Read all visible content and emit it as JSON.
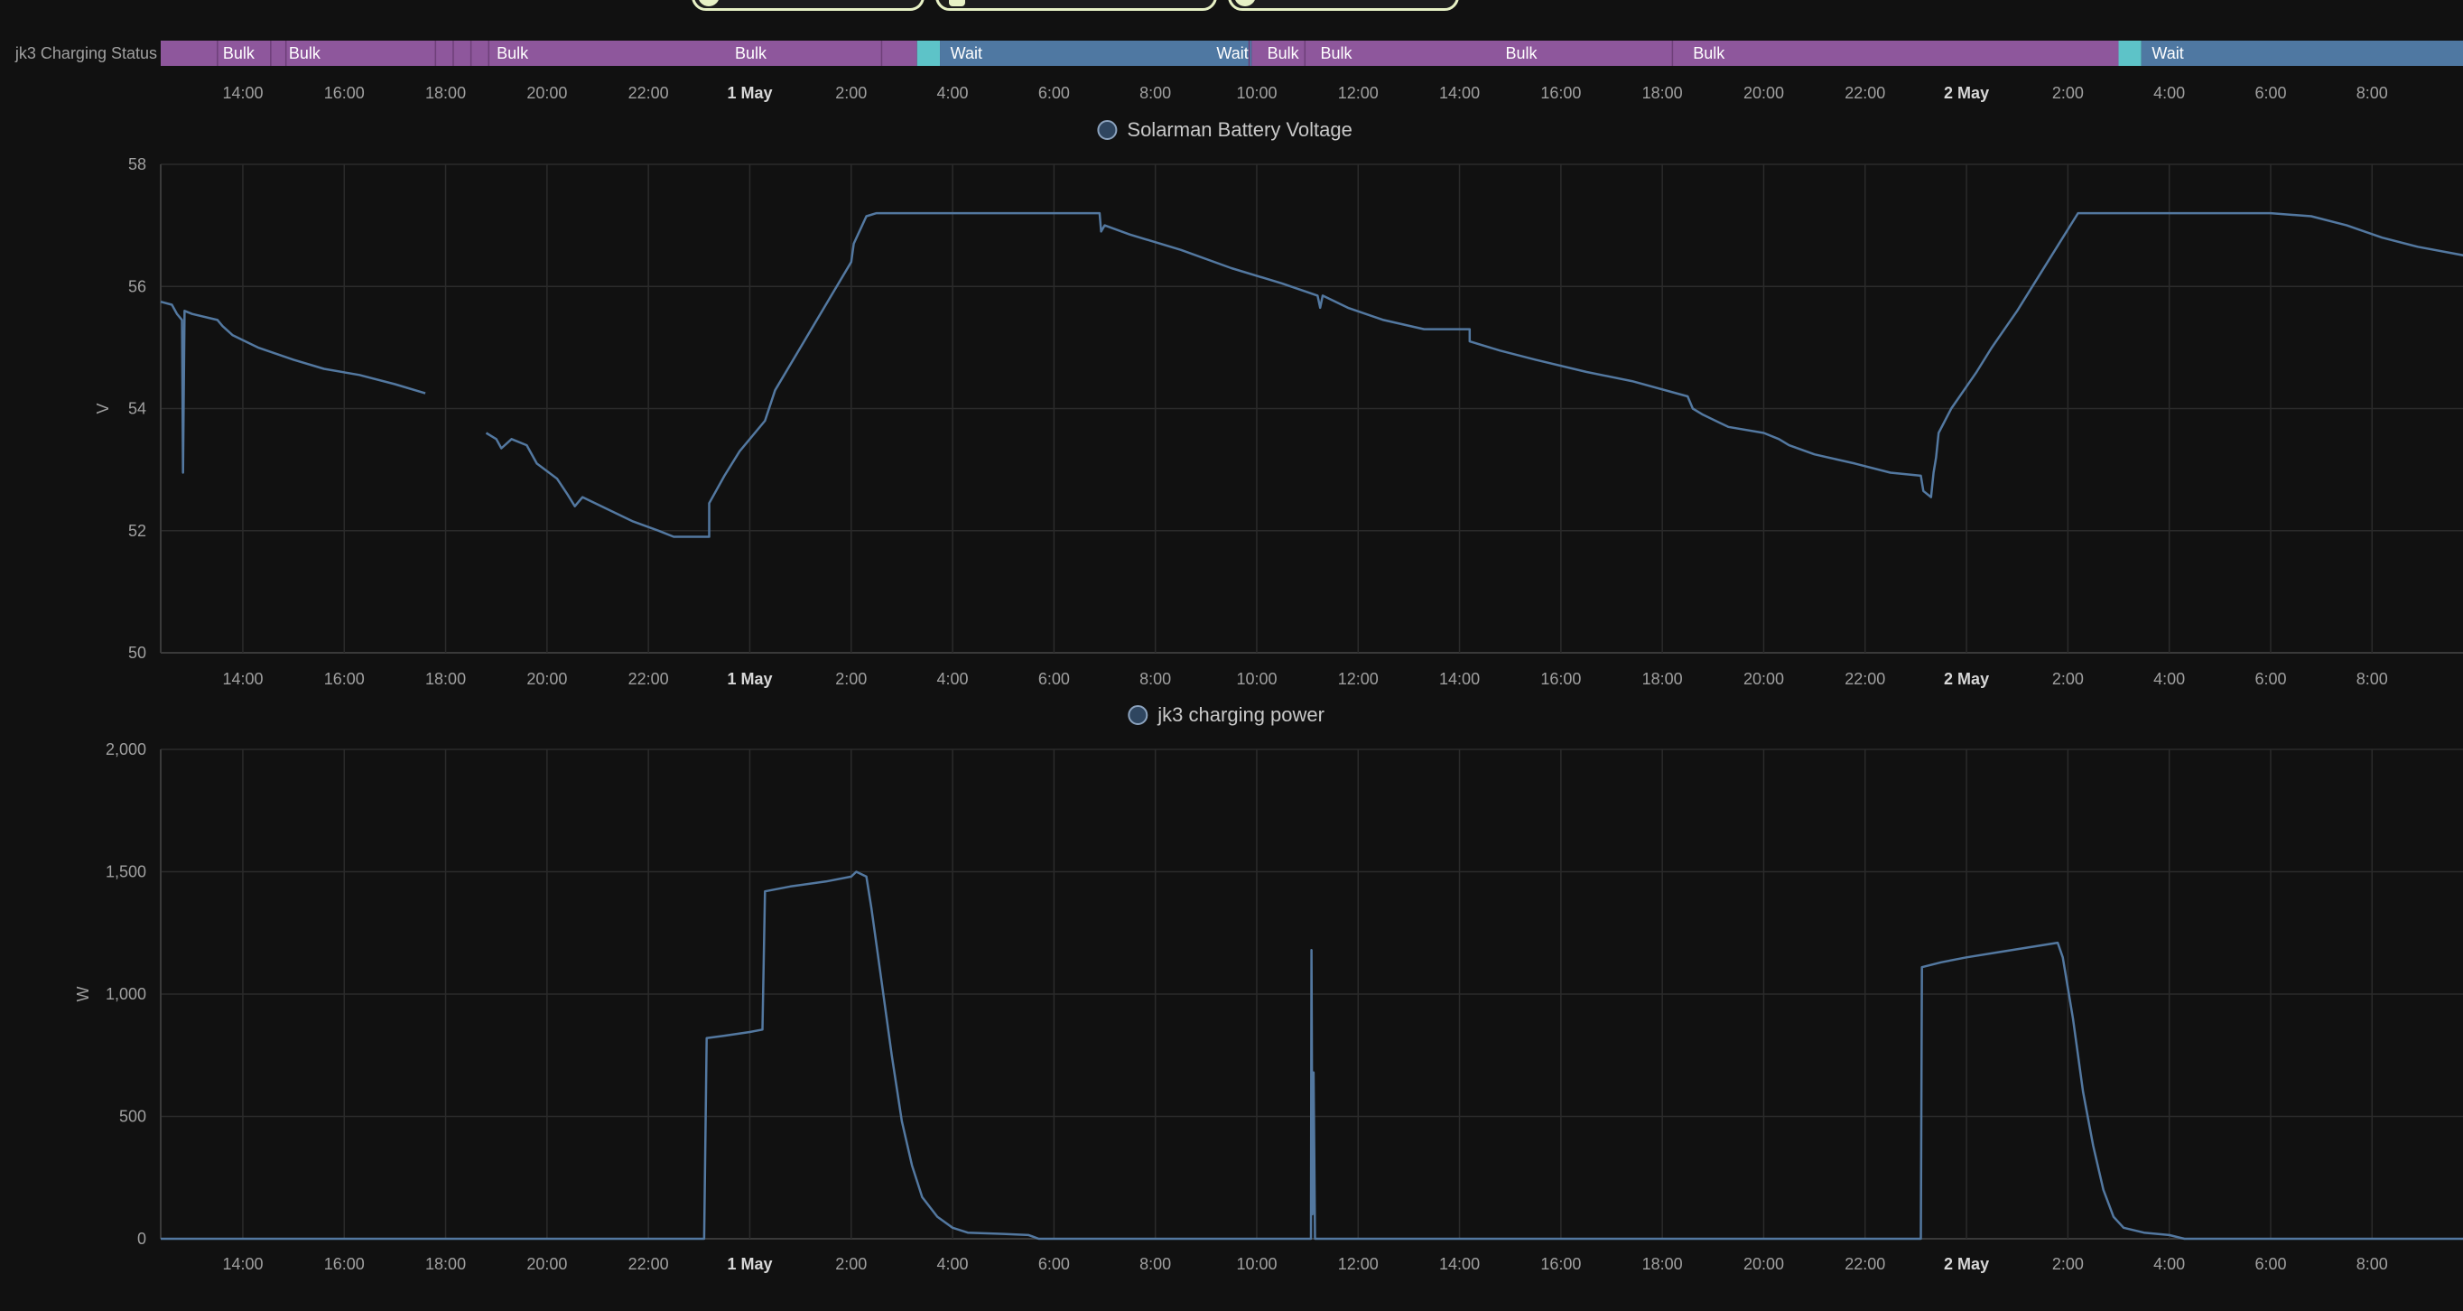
{
  "top_buttons": [
    {
      "name": "top-chip-1",
      "icon": "circle-icon"
    },
    {
      "name": "top-chip-2",
      "icon": "battery-icon"
    },
    {
      "name": "top-chip-3",
      "icon": "circle-icon"
    }
  ],
  "time_axis": {
    "ticks": [
      "14:00",
      "16:00",
      "18:00",
      "20:00",
      "22:00",
      "1 May",
      "2:00",
      "4:00",
      "6:00",
      "8:00",
      "10:00",
      "12:00",
      "14:00",
      "16:00",
      "18:00",
      "20:00",
      "22:00",
      "2 May",
      "2:00",
      "4:00",
      "6:00",
      "8:00"
    ],
    "bold_ticks": [
      "1 May",
      "2 May"
    ],
    "first_tick_hours": 14,
    "start_hours": 12.38,
    "end_hours": 57.86
  },
  "colors": {
    "background": "#111111",
    "grid": "#2b2b2b",
    "axis_text": "#a0a0a0",
    "series_line": "#5378a0",
    "bulk": "#8e579c",
    "wait": "#4f78a2",
    "wait_start": "#5dc3c8"
  },
  "chart_data": [
    {
      "type": "timeline",
      "row_label": "jk3 Charging Status",
      "segments": [
        {
          "state": "Bulk",
          "start": 12.38,
          "end": 27.3,
          "label": ""
        },
        {
          "state": "Wait",
          "start": 27.3,
          "end": 27.75,
          "label": ""
        },
        {
          "state": "Wait",
          "start": 27.75,
          "end": 33.9,
          "label": "Wait"
        },
        {
          "state": "Bulk",
          "start": 33.9,
          "end": 51.0,
          "label": ""
        },
        {
          "state": "Wait",
          "start": 51.0,
          "end": 51.45,
          "label": ""
        },
        {
          "state": "Wait",
          "start": 51.45,
          "end": 57.86,
          "label": "Wait"
        }
      ],
      "labels": [
        {
          "text": "Bulk",
          "at": 13.5
        },
        {
          "text": "Bulk",
          "at": 14.8
        },
        {
          "text": "Bulk",
          "at": 18.9
        },
        {
          "text": "Bulk",
          "at": 23.6
        },
        {
          "text": "Wait",
          "at": 27.85
        },
        {
          "text": "Wait",
          "at": 33.1
        },
        {
          "text": "Bulk",
          "at": 34.1
        },
        {
          "text": "Bulk",
          "at": 35.15
        },
        {
          "text": "Bulk",
          "at": 38.8
        },
        {
          "text": "Bulk",
          "at": 42.5
        },
        {
          "text": "Wait",
          "at": 51.55
        }
      ],
      "dividers": [
        13.5,
        14.55,
        14.85,
        17.8,
        18.15,
        18.5,
        18.85,
        26.6,
        33.85,
        34.95,
        42.2
      ]
    },
    {
      "type": "line",
      "legend": "Solarman Battery Voltage",
      "ylabel": "V",
      "ylim": [
        50,
        58
      ],
      "yticks": [
        "50",
        "52",
        "54",
        "56",
        "58"
      ],
      "ytick_values": [
        50,
        52,
        54,
        56,
        58
      ],
      "segments": [
        [
          [
            12.38,
            55.75
          ],
          [
            12.6,
            55.7
          ],
          [
            12.7,
            55.55
          ],
          [
            12.8,
            55.45
          ],
          [
            12.82,
            52.95
          ],
          [
            12.85,
            55.6
          ],
          [
            13.0,
            55.55
          ],
          [
            13.5,
            55.45
          ],
          [
            13.6,
            55.35
          ],
          [
            13.8,
            55.2
          ],
          [
            14.3,
            55.0
          ],
          [
            15.0,
            54.8
          ],
          [
            15.6,
            54.65
          ],
          [
            16.3,
            54.55
          ],
          [
            17.0,
            54.4
          ],
          [
            17.6,
            54.25
          ]
        ],
        [
          [
            18.8,
            53.6
          ],
          [
            19.0,
            53.5
          ],
          [
            19.1,
            53.35
          ],
          [
            19.3,
            53.5
          ],
          [
            19.6,
            53.4
          ],
          [
            19.8,
            53.1
          ],
          [
            20.2,
            52.85
          ],
          [
            20.4,
            52.6
          ],
          [
            20.55,
            52.4
          ],
          [
            20.7,
            52.55
          ],
          [
            21.2,
            52.35
          ],
          [
            21.7,
            52.15
          ],
          [
            22.2,
            52.0
          ],
          [
            22.5,
            51.9
          ],
          [
            23.2,
            51.9
          ],
          [
            23.2,
            52.45
          ],
          [
            23.5,
            52.9
          ],
          [
            23.8,
            53.3
          ],
          [
            24.3,
            53.8
          ],
          [
            24.5,
            54.3
          ],
          [
            25.0,
            55.0
          ],
          [
            25.5,
            55.7
          ],
          [
            26.0,
            56.4
          ],
          [
            26.05,
            56.7
          ],
          [
            26.3,
            57.15
          ],
          [
            26.5,
            57.2
          ],
          [
            28.0,
            57.2
          ],
          [
            29.0,
            57.2
          ],
          [
            30.0,
            57.2
          ],
          [
            30.9,
            57.2
          ],
          [
            30.93,
            56.9
          ],
          [
            31.0,
            57.0
          ],
          [
            31.5,
            56.85
          ],
          [
            32.5,
            56.6
          ],
          [
            33.5,
            56.3
          ],
          [
            34.5,
            56.05
          ],
          [
            35.2,
            55.85
          ],
          [
            35.25,
            55.65
          ],
          [
            35.3,
            55.85
          ],
          [
            35.8,
            55.65
          ],
          [
            36.5,
            55.45
          ],
          [
            37.3,
            55.3
          ],
          [
            38.2,
            55.3
          ],
          [
            38.2,
            55.1
          ],
          [
            38.8,
            54.95
          ],
          [
            39.5,
            54.8
          ],
          [
            40.5,
            54.6
          ],
          [
            41.4,
            54.45
          ],
          [
            42.5,
            54.2
          ],
          [
            42.6,
            54.0
          ],
          [
            42.8,
            53.9
          ],
          [
            43.3,
            53.7
          ],
          [
            44.0,
            53.6
          ],
          [
            44.3,
            53.5
          ],
          [
            44.5,
            53.4
          ],
          [
            45.0,
            53.25
          ],
          [
            45.8,
            53.1
          ],
          [
            46.5,
            52.95
          ],
          [
            47.1,
            52.9
          ],
          [
            47.15,
            52.65
          ],
          [
            47.3,
            52.55
          ],
          [
            47.35,
            52.95
          ],
          [
            47.4,
            53.2
          ],
          [
            47.45,
            53.6
          ],
          [
            47.7,
            54.0
          ],
          [
            48.2,
            54.6
          ],
          [
            48.5,
            55.0
          ],
          [
            49.0,
            55.6
          ],
          [
            49.6,
            56.4
          ],
          [
            50.2,
            57.2
          ],
          [
            51.0,
            57.2
          ],
          [
            52.0,
            57.2
          ],
          [
            53.2,
            57.2
          ],
          [
            54.0,
            57.2
          ],
          [
            54.8,
            57.15
          ],
          [
            55.5,
            57.0
          ],
          [
            56.2,
            56.8
          ],
          [
            56.9,
            56.65
          ],
          [
            57.86,
            56.5
          ]
        ]
      ]
    },
    {
      "type": "line",
      "legend": "jk3 charging power",
      "ylabel": "W",
      "ylim": [
        0,
        2000
      ],
      "yticks": [
        "0",
        "500",
        "1,000",
        "1,500",
        "2,000"
      ],
      "ytick_values": [
        0,
        500,
        1000,
        1500,
        2000
      ],
      "segments": [
        [
          [
            12.38,
            0
          ],
          [
            23.1,
            0
          ],
          [
            23.15,
            820
          ],
          [
            23.5,
            830
          ],
          [
            24.0,
            845
          ],
          [
            24.25,
            855
          ],
          [
            24.3,
            1420
          ],
          [
            24.8,
            1440
          ],
          [
            25.5,
            1460
          ],
          [
            26.0,
            1480
          ],
          [
            26.1,
            1500
          ],
          [
            26.3,
            1480
          ],
          [
            26.4,
            1350
          ],
          [
            26.6,
            1050
          ],
          [
            26.8,
            750
          ],
          [
            27.0,
            480
          ],
          [
            27.2,
            300
          ],
          [
            27.4,
            170
          ],
          [
            27.7,
            90
          ],
          [
            28.0,
            45
          ],
          [
            28.3,
            25
          ],
          [
            29.0,
            20
          ],
          [
            29.5,
            15
          ],
          [
            29.7,
            0
          ],
          [
            35.07,
            0
          ],
          [
            35.08,
            1180
          ],
          [
            35.1,
            100
          ],
          [
            35.12,
            680
          ],
          [
            35.15,
            0
          ],
          [
            47.1,
            0
          ],
          [
            47.12,
            1110
          ],
          [
            47.5,
            1130
          ],
          [
            48.0,
            1150
          ],
          [
            48.6,
            1170
          ],
          [
            49.2,
            1190
          ],
          [
            49.8,
            1210
          ],
          [
            49.9,
            1150
          ],
          [
            50.1,
            900
          ],
          [
            50.3,
            600
          ],
          [
            50.5,
            380
          ],
          [
            50.7,
            200
          ],
          [
            50.9,
            90
          ],
          [
            51.1,
            45
          ],
          [
            51.5,
            25
          ],
          [
            52.0,
            15
          ],
          [
            52.3,
            0
          ],
          [
            57.86,
            0
          ]
        ]
      ]
    }
  ]
}
